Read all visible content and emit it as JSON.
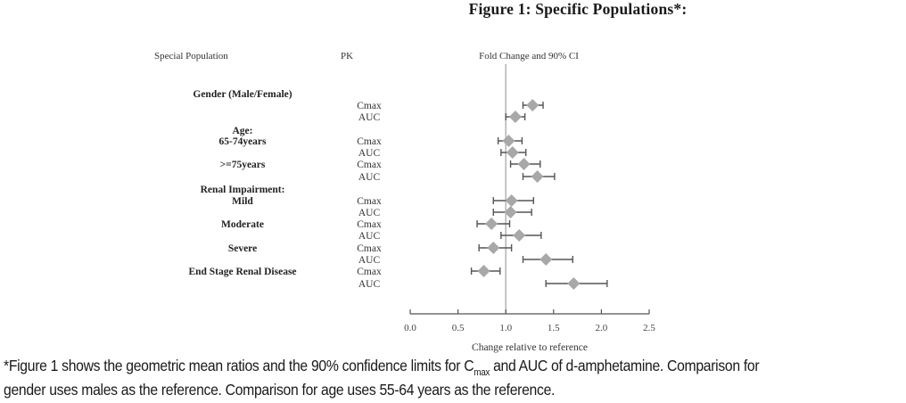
{
  "figure": {
    "title": "Figure 1: Specific Populations*:",
    "headers": {
      "population": "Special Population",
      "pk": "PK",
      "plot": "Fold Change and 90% CI"
    },
    "footnote": {
      "line1_part1": "*Figure 1 shows the geometric mean ratios and the 90% confidence limits for C",
      "line1_sub": "max",
      "line1_part2": " and AUC of d-amphetamine. Comparison for",
      "line2": "gender uses males as the reference. Comparison for age uses 55-64 years as the reference."
    }
  },
  "chart_data": {
    "type": "forest",
    "title": "Fold Change and 90% CI",
    "xlabel": "Change relative to reference",
    "ylabel": "",
    "xlim": [
      0.0,
      2.5
    ],
    "xticks": [
      "0.0",
      "0.5",
      "1.0",
      "1.5",
      "2.0",
      "2.5"
    ],
    "xtick_values": [
      0.0,
      0.5,
      1.0,
      1.5,
      2.0,
      2.5
    ],
    "reference_line": 1.0,
    "grid": false,
    "group_labels": [
      {
        "text": "Gender (Male/Female)"
      },
      {
        "text": "Age:"
      },
      {
        "text": "65-74years"
      },
      {
        "text": ">=75years"
      },
      {
        "text": "Renal Impairment:"
      },
      {
        "text": "Mild"
      },
      {
        "text": "Moderate"
      },
      {
        "text": "Severe"
      },
      {
        "text": "End Stage Renal Disease"
      }
    ],
    "rows": [
      {
        "group": "Gender (Male/Female)",
        "pk": "Cmax",
        "estimate": 1.28,
        "lower": 1.18,
        "upper": 1.39
      },
      {
        "group": "Gender (Male/Female)",
        "pk": "AUC",
        "estimate": 1.1,
        "lower": 1.0,
        "upper": 1.2
      },
      {
        "group": "Age 65-74years",
        "pk": "Cmax",
        "estimate": 1.03,
        "lower": 0.92,
        "upper": 1.17
      },
      {
        "group": "Age 65-74years",
        "pk": "AUC",
        "estimate": 1.07,
        "lower": 0.95,
        "upper": 1.21
      },
      {
        "group": "Age >=75years",
        "pk": "Cmax",
        "estimate": 1.19,
        "lower": 1.05,
        "upper": 1.36
      },
      {
        "group": "Age >=75years",
        "pk": "AUC",
        "estimate": 1.33,
        "lower": 1.18,
        "upper": 1.51
      },
      {
        "group": "Renal Impairment Mild",
        "pk": "Cmax",
        "estimate": 1.06,
        "lower": 0.87,
        "upper": 1.29
      },
      {
        "group": "Renal Impairment Mild",
        "pk": "AUC",
        "estimate": 1.05,
        "lower": 0.87,
        "upper": 1.27
      },
      {
        "group": "Renal Impairment Moderate",
        "pk": "Cmax",
        "estimate": 0.85,
        "lower": 0.7,
        "upper": 1.04
      },
      {
        "group": "Renal Impairment Moderate",
        "pk": "AUC",
        "estimate": 1.14,
        "lower": 0.95,
        "upper": 1.37
      },
      {
        "group": "Renal Impairment Severe",
        "pk": "Cmax",
        "estimate": 0.87,
        "lower": 0.72,
        "upper": 1.06
      },
      {
        "group": "Renal Impairment Severe",
        "pk": "AUC",
        "estimate": 1.42,
        "lower": 1.18,
        "upper": 1.7
      },
      {
        "group": "End Stage Renal Disease",
        "pk": "Cmax",
        "estimate": 0.77,
        "lower": 0.64,
        "upper": 0.94
      },
      {
        "group": "End Stage Renal Disease",
        "pk": "AUC",
        "estimate": 1.71,
        "lower": 1.42,
        "upper": 2.06
      }
    ],
    "colors": {
      "marker": "#a8a8a8",
      "ci_line": "#555555",
      "reference_line": "#b8b8b8",
      "axis": "#555555"
    }
  }
}
